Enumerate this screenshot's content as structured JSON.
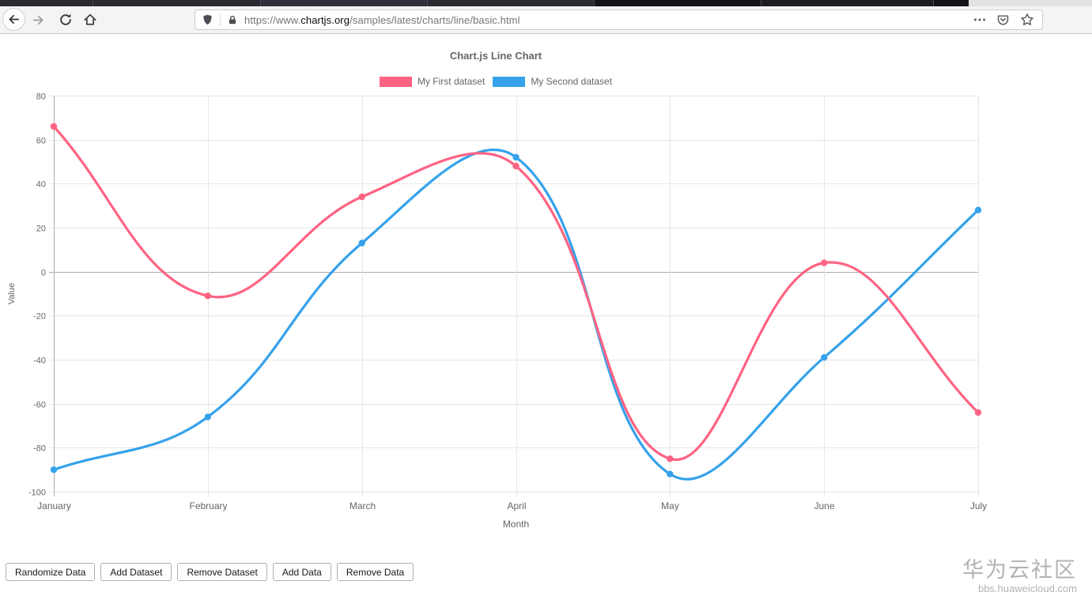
{
  "browser": {
    "toolbar": {
      "url": {
        "prefix": "https://www.",
        "domain": "chartjs.org",
        "path": "/samples/latest/charts/line/basic.html"
      }
    }
  },
  "chart_data": {
    "type": "line",
    "title": "Chart.js Line Chart",
    "categories": [
      "January",
      "February",
      "March",
      "April",
      "May",
      "June",
      "July"
    ],
    "series": [
      {
        "name": "My First dataset",
        "color": "#ff6384",
        "values": [
          66,
          -11,
          34,
          48,
          -85,
          4,
          -64
        ]
      },
      {
        "name": "My Second dataset",
        "color": "#36a2eb",
        "values": [
          -90,
          -66,
          13,
          52,
          -92,
          -39,
          28
        ]
      }
    ],
    "xlabel": "Month",
    "ylabel": "Value",
    "ylim": [
      -100,
      80
    ],
    "ytick_step": 20,
    "grid": true,
    "legend_position": "top",
    "line_tension": 0.4
  },
  "controls": {
    "buttons": [
      {
        "label": "Randomize Data"
      },
      {
        "label": "Add Dataset"
      },
      {
        "label": "Remove Dataset"
      },
      {
        "label": "Add Data"
      },
      {
        "label": "Remove Data"
      }
    ]
  },
  "watermark": {
    "title": "华为云社区",
    "subtitle": "bbs.huaweicloud.com"
  }
}
